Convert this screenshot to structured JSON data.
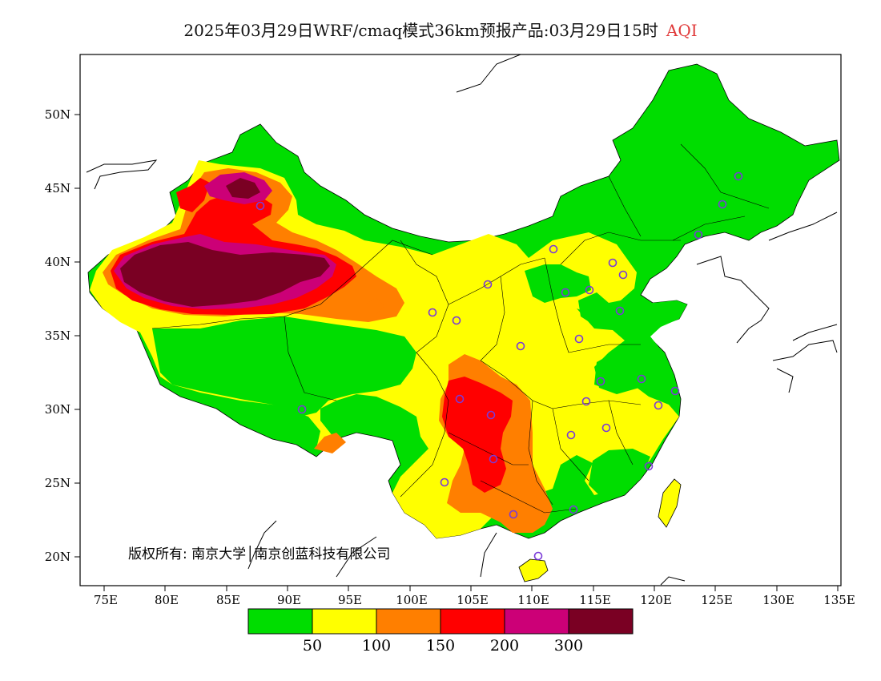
{
  "title": {
    "main": "2025年03月29日WRF/cmaq模式36km预报产品:03月29日15时",
    "variable": "AQI"
  },
  "axes": {
    "x_ticks": [
      "75E",
      "80E",
      "85E",
      "90E",
      "95E",
      "100E",
      "105E",
      "110E",
      "115E",
      "120E",
      "125E",
      "130E",
      "135E"
    ],
    "y_ticks": [
      "50N",
      "45N",
      "40N",
      "35N",
      "30N",
      "25N",
      "20N"
    ]
  },
  "copyright": "版权所有: 南京大学│南京创蓝科技有限公司",
  "colorbar": {
    "colors": [
      "#00dd00",
      "#ffff00",
      "#ff7f00",
      "#ff0000",
      "#cc0077",
      "#7a0023"
    ],
    "labels": [
      "50",
      "100",
      "150",
      "200",
      "300"
    ]
  },
  "station_marker_color": "#7a3ad8"
}
